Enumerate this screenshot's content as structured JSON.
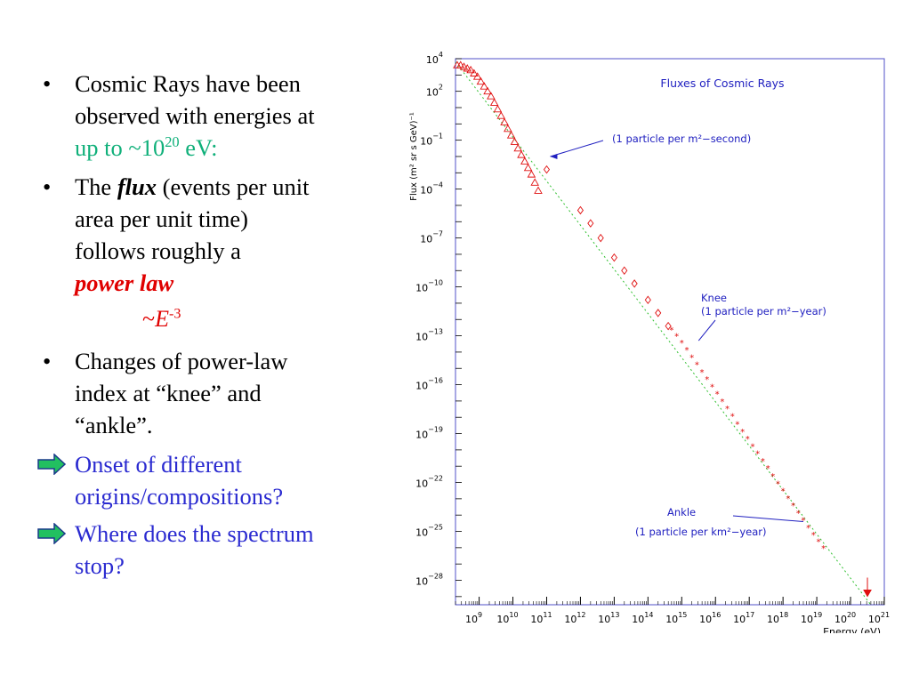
{
  "slide": {
    "bullet1": {
      "line1": "Cosmic Rays have been",
      "line2": "observed with energies at",
      "line3_prefix": "up to ~10",
      "line3_exp": "20",
      "line3_suffix": " eV:"
    },
    "bullet2": {
      "word1": "The ",
      "word2": "flux",
      "rest1": " (events per unit",
      "line2": "area per unit time)",
      "line3": "follows roughly a",
      "line4": "power law"
    },
    "formula": {
      "prefix": "~",
      "base": "E",
      "exp": "-3"
    },
    "bullet3": {
      "line1": "Changes of power-law",
      "line2": "index at “knee” and",
      "line3": "“ankle”."
    },
    "arrow_items": [
      {
        "line1": "Onset of different",
        "line2": "origins/compositions?"
      },
      {
        "line1": "Where does the spectrum",
        "line2": "stop?"
      }
    ],
    "bullet_char": "•"
  },
  "chart_data": {
    "type": "scatter",
    "title": "Fluxes of Cosmic Rays",
    "xlabel": "Energy (eV)",
    "ylabel": "Flux (m² sr s GeV)⁻¹",
    "x_scale": "log",
    "y_scale": "log",
    "xlim_exp": [
      8.3,
      21
    ],
    "ylim_exp": [
      -29.5,
      4
    ],
    "x_ticks": [
      9,
      10,
      11,
      12,
      13,
      14,
      15,
      16,
      17,
      18,
      19,
      20,
      21
    ],
    "y_ticks": [
      4,
      2,
      -1,
      -4,
      -7,
      -10,
      -13,
      -16,
      -19,
      -22,
      -25,
      -28
    ],
    "reference_line": {
      "log_e": [
        8.3,
        20.6
      ],
      "log_flux": [
        3.8,
        -29.5
      ]
    },
    "series": [
      {
        "marker": "triangle",
        "log_energy": [
          8.35,
          8.45,
          8.55,
          8.65,
          8.75,
          8.85,
          8.95,
          9.05,
          9.15,
          9.25,
          9.35,
          9.45,
          9.55,
          9.65,
          9.75,
          9.85,
          9.95,
          10.05,
          10.15,
          10.25,
          10.35,
          10.45,
          10.55,
          10.65,
          10.75
        ],
        "log_flux": [
          3.6,
          3.6,
          3.5,
          3.4,
          3.3,
          3.1,
          2.9,
          2.6,
          2.3,
          2.0,
          1.7,
          1.3,
          0.9,
          0.5,
          0.1,
          -0.3,
          -0.7,
          -1.1,
          -1.5,
          -1.9,
          -2.3,
          -2.7,
          -3.1,
          -3.6,
          -4.1
        ]
      },
      {
        "marker": "diamond",
        "log_energy": [
          11.0,
          12.0,
          12.3,
          12.6,
          13.0,
          13.3,
          13.6,
          14.0,
          14.3,
          14.6
        ],
        "log_flux": [
          -2.8,
          -5.3,
          -6.1,
          -7.0,
          -8.2,
          -9.0,
          -9.8,
          -10.8,
          -11.6,
          -12.4
        ]
      },
      {
        "marker": "star",
        "log_energy": [
          14.7,
          14.85,
          15.0,
          15.15,
          15.3,
          15.45,
          15.6,
          15.75,
          15.9,
          16.05,
          16.2,
          16.35,
          16.5,
          16.65,
          16.8,
          16.95,
          17.1,
          17.25,
          17.4,
          17.55,
          17.7,
          17.85,
          18.0,
          18.15,
          18.3,
          18.45,
          18.6,
          18.75,
          18.9,
          19.05,
          19.2
        ],
        "log_flux": [
          -12.6,
          -13.0,
          -13.4,
          -13.85,
          -14.3,
          -14.75,
          -15.2,
          -15.65,
          -16.1,
          -16.55,
          -17.0,
          -17.45,
          -17.9,
          -18.4,
          -18.85,
          -19.3,
          -19.75,
          -20.2,
          -20.65,
          -21.1,
          -21.6,
          -22.05,
          -22.5,
          -22.95,
          -23.4,
          -23.85,
          -24.3,
          -24.75,
          -25.2,
          -25.6,
          -26.0
        ]
      },
      {
        "marker": "filled-triangle",
        "log_energy": [
          20.5
        ],
        "log_flux": [
          -28.6
        ]
      }
    ],
    "annotations": [
      {
        "text": "(1 particle per m²−second)",
        "points_to_log": [
          11.0,
          -2.0
        ]
      },
      {
        "text": "Knee",
        "points_to_log": [
          15.5,
          -13.3
        ]
      },
      {
        "text": "(1 particle per m²−year)",
        "points_to_log": [
          15.5,
          -13.3
        ]
      },
      {
        "text": "Ankle",
        "points_to_log": [
          18.6,
          -24.4
        ]
      },
      {
        "text": "(1 particle per km²−year)",
        "points_to_log": [
          18.6,
          -24.4
        ]
      }
    ],
    "colors": {
      "frame": "#5050c8",
      "data": "#e01010",
      "reference_line": "#30c030",
      "annotation": "#2020c0"
    }
  }
}
